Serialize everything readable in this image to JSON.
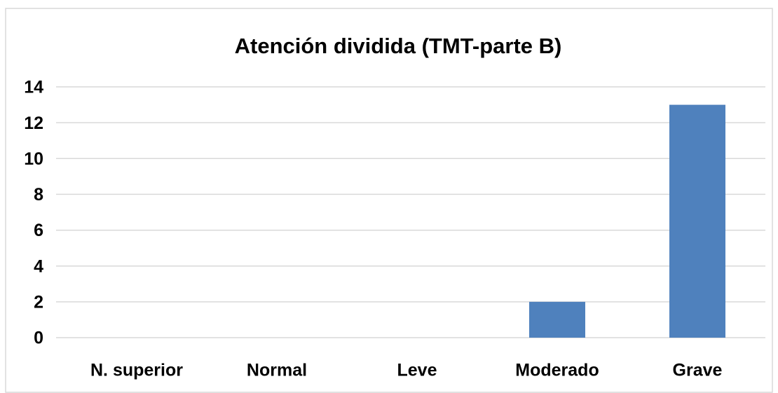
{
  "chart_data": {
    "type": "bar",
    "title": "Atención dividida (TMT-parte B)",
    "categories": [
      "N. superior",
      "Normal",
      "Leve",
      "Moderado",
      "Grave"
    ],
    "values": [
      0,
      0,
      0,
      2,
      13
    ],
    "color": "#4f81bd",
    "ylim": [
      0,
      14
    ],
    "yticks": [
      0,
      2,
      4,
      6,
      8,
      10,
      12,
      14
    ],
    "grid": true
  }
}
